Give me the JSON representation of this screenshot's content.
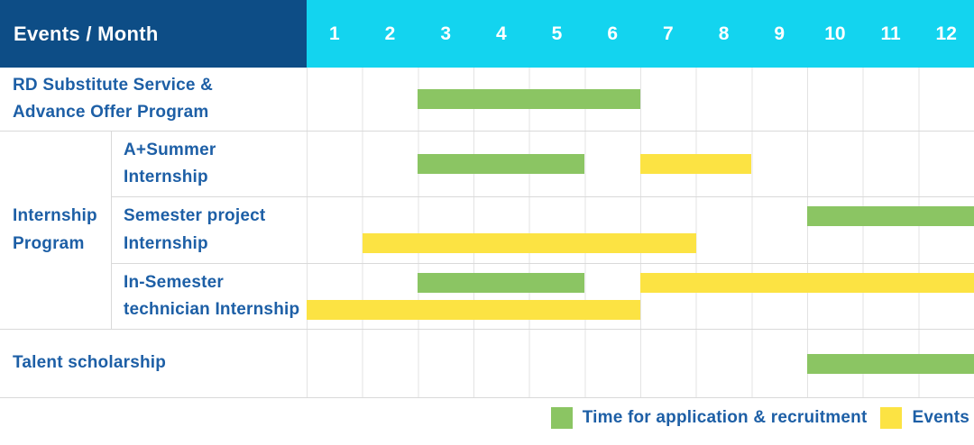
{
  "header": {
    "label": "Events / Month",
    "months": [
      "1",
      "2",
      "3",
      "4",
      "5",
      "6",
      "7",
      "8",
      "9",
      "10",
      "11",
      "12"
    ]
  },
  "group": {
    "label": "Internship\nProgram"
  },
  "rows": [
    {
      "id": "rd-substitute-service",
      "label": "RD Substitute Service &\nAdvance Offer Program",
      "bars": [
        {
          "kind": "application",
          "start_month": 3,
          "end_month": 6,
          "line": "center"
        }
      ]
    },
    {
      "id": "a-plus-summer-internship",
      "label": "A+Summer\nInternship",
      "bars": [
        {
          "kind": "application",
          "start_month": 3,
          "end_month": 5,
          "line": "center"
        },
        {
          "kind": "event",
          "start_month": 7,
          "end_month": 8,
          "line": "center"
        }
      ]
    },
    {
      "id": "semester-project-internship",
      "label": "Semester project\nInternship",
      "bars": [
        {
          "kind": "application",
          "start_month": 10,
          "end_month": 12,
          "line": "top"
        },
        {
          "kind": "event",
          "start_month": 2,
          "end_month": 7,
          "line": "bottom"
        }
      ]
    },
    {
      "id": "in-semester-technician-internship",
      "label": "In-Semester\ntechnician Internship",
      "bars": [
        {
          "kind": "application",
          "start_month": 3,
          "end_month": 5,
          "line": "top"
        },
        {
          "kind": "event",
          "start_month": 7,
          "end_month": 12,
          "line": "top"
        },
        {
          "kind": "event",
          "start_month": 1,
          "end_month": 6,
          "line": "bottom"
        }
      ]
    },
    {
      "id": "talent-scholarship",
      "label": "Talent scholarship",
      "bars": [
        {
          "kind": "application",
          "start_month": 10,
          "end_month": 12,
          "line": "center"
        }
      ]
    }
  ],
  "legend": {
    "items": [
      {
        "kind": "application",
        "label": "Time for application & recruitment"
      },
      {
        "kind": "event",
        "label": "Events"
      }
    ]
  },
  "colors": {
    "header_navy": "#0D4D86",
    "header_cyan": "#13D4EF",
    "label_blue": "#1D5FA6",
    "application_green": "#8BC563",
    "event_yellow": "#FCE343"
  },
  "chart_data": {
    "type": "bar",
    "variant": "gantt-timeline",
    "title": "Events / Month",
    "x_unit": "month",
    "x_range": [
      1,
      12
    ],
    "x_ticks": [
      1,
      2,
      3,
      4,
      5,
      6,
      7,
      8,
      9,
      10,
      11,
      12
    ],
    "legend_entries": [
      "Time for application & recruitment",
      "Events"
    ],
    "legend_position": "bottom-right",
    "grid": true,
    "tasks": [
      {
        "name": "RD Substitute Service & Advance Offer Program",
        "group": null,
        "application_recruitment_months": [
          [
            3,
            6
          ]
        ],
        "event_months": []
      },
      {
        "name": "A+Summer Internship",
        "group": "Internship Program",
        "application_recruitment_months": [
          [
            3,
            5
          ]
        ],
        "event_months": [
          [
            7,
            8
          ]
        ]
      },
      {
        "name": "Semester project Internship",
        "group": "Internship Program",
        "application_recruitment_months": [
          [
            10,
            12
          ]
        ],
        "event_months": [
          [
            2,
            7
          ]
        ]
      },
      {
        "name": "In-Semester technician Internship",
        "group": "Internship Program",
        "application_recruitment_months": [
          [
            3,
            5
          ]
        ],
        "event_months": [
          [
            1,
            6
          ],
          [
            7,
            12
          ]
        ]
      },
      {
        "name": "Talent scholarship",
        "group": null,
        "application_recruitment_months": [
          [
            10,
            12
          ]
        ],
        "event_months": []
      }
    ]
  }
}
